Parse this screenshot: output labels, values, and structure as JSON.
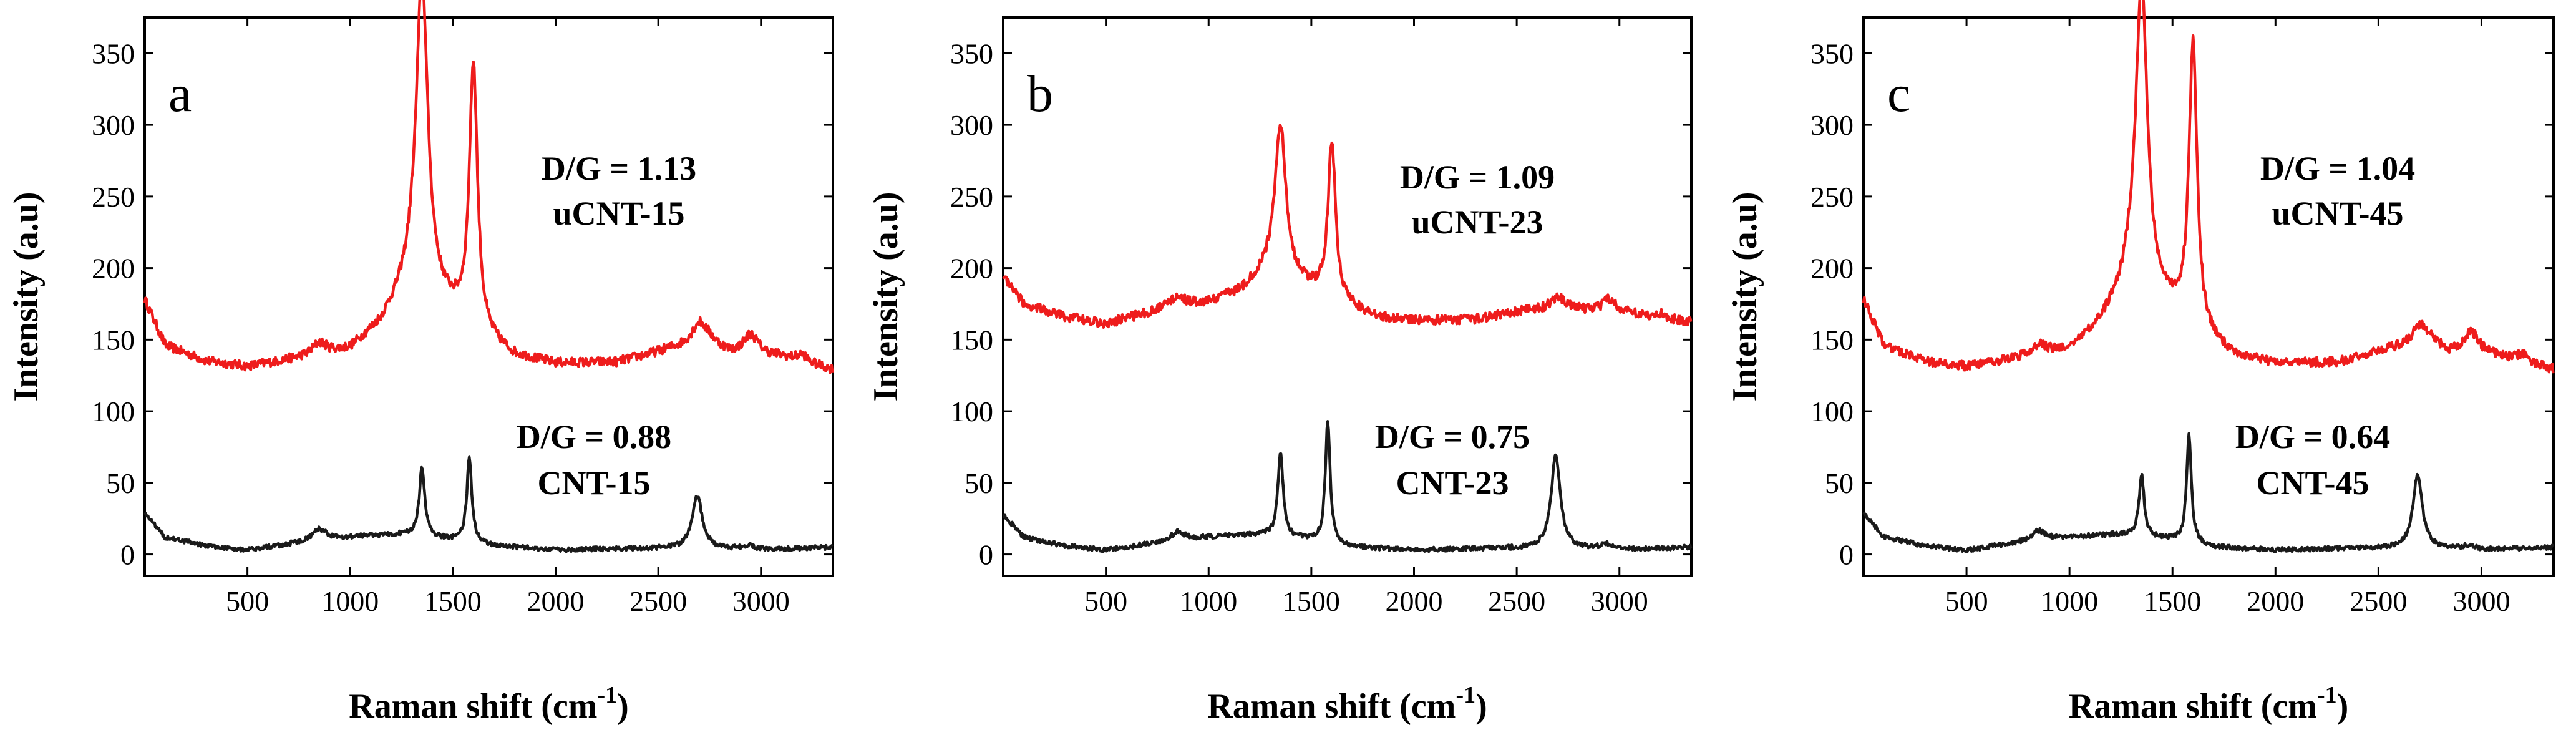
{
  "chart_data": [
    {
      "type": "line",
      "panel_label": "a",
      "xlabel": "Raman shift (cm",
      "xlabel_sup": "-1",
      "xlabel_end": ")",
      "ylabel": "Intensity (a.u)",
      "xlim": [
        0,
        3350
      ],
      "ylim": [
        -15,
        375
      ],
      "xticks": [
        500,
        1000,
        1500,
        2000,
        2500,
        3000
      ],
      "yticks": [
        0,
        50,
        100,
        150,
        200,
        250,
        300,
        350
      ],
      "annotations": {
        "upper": [
          "D/G = 1.13",
          "uCNT-15"
        ],
        "lower": [
          "D/G = 0.88",
          "CNT-15"
        ]
      },
      "series": [
        {
          "name": "uCNT-15",
          "color": "#ee1c1c",
          "baseline": [
            [
              0,
              178
            ],
            [
              100,
              146
            ],
            [
              300,
              135
            ],
            [
              500,
              131
            ],
            [
              800,
              138
            ],
            [
              1000,
              143
            ],
            [
              1150,
              160
            ],
            [
              1300,
              190
            ],
            [
              1400,
              178
            ],
            [
              1500,
              168
            ],
            [
              1650,
              150
            ],
            [
              1800,
              138
            ],
            [
              2000,
              133
            ],
            [
              2300,
              134
            ],
            [
              2550,
              143
            ],
            [
              2750,
              148
            ],
            [
              2850,
              140
            ],
            [
              3100,
              138
            ],
            [
              3350,
              129
            ]
          ],
          "peaks": [
            [
              1350,
              220,
              34
            ],
            [
              1600,
              185,
              24
            ],
            [
              850,
              8,
              40
            ],
            [
              2700,
              15,
              45
            ],
            [
              2950,
              14,
              45
            ],
            [
              3200,
              5,
              30
            ]
          ]
        },
        {
          "name": "CNT-15",
          "color": "#1a1a1a",
          "baseline": [
            [
              0,
              29
            ],
            [
              100,
              12
            ],
            [
              300,
              6
            ],
            [
              500,
              3
            ],
            [
              800,
              9
            ],
            [
              1000,
              12
            ],
            [
              1250,
              14
            ],
            [
              1500,
              10
            ],
            [
              1700,
              6
            ],
            [
              2000,
              3
            ],
            [
              2300,
              4
            ],
            [
              2600,
              4
            ],
            [
              3000,
              3
            ],
            [
              3350,
              5
            ]
          ],
          "peaks": [
            [
              1350,
              48,
              16
            ],
            [
              1580,
              58,
              15
            ],
            [
              850,
              8,
              40
            ],
            [
              2690,
              37,
              30
            ],
            [
              2940,
              3,
              40
            ]
          ]
        }
      ]
    },
    {
      "type": "line",
      "panel_label": "b",
      "xlabel": "Raman shift (cm",
      "xlabel_sup": "-1",
      "xlabel_end": ")",
      "ylabel": "Intensity (a.u)",
      "xlim": [
        0,
        3350
      ],
      "ylim": [
        -15,
        375
      ],
      "xticks": [
        500,
        1000,
        1500,
        2000,
        2500,
        3000
      ],
      "yticks": [
        0,
        50,
        100,
        150,
        200,
        250,
        300,
        350
      ],
      "annotations": {
        "upper": [
          "D/G = 1.09",
          "uCNT-23"
        ],
        "lower": [
          "D/G = 0.75",
          "CNT-23"
        ]
      },
      "series": [
        {
          "name": "uCNT-23",
          "color": "#ee1c1c",
          "baseline": [
            [
              0,
              195
            ],
            [
              100,
              175
            ],
            [
              300,
              166
            ],
            [
              500,
              161
            ],
            [
              800,
              172
            ],
            [
              1000,
              176
            ],
            [
              1150,
              183
            ],
            [
              1300,
              198
            ],
            [
              1450,
              188
            ],
            [
              1650,
              175
            ],
            [
              1800,
              166
            ],
            [
              2000,
              163
            ],
            [
              2300,
              164
            ],
            [
              2550,
              170
            ],
            [
              2800,
              170
            ],
            [
              3050,
              168
            ],
            [
              3350,
              162
            ]
          ],
          "peaks": [
            [
              1350,
              105,
              32
            ],
            [
              1600,
              110,
              22
            ],
            [
              850,
              7,
              40
            ],
            [
              2700,
              10,
              45
            ],
            [
              2950,
              9,
              40
            ],
            [
              3200,
              3,
              30
            ]
          ]
        },
        {
          "name": "CNT-23",
          "color": "#1a1a1a",
          "baseline": [
            [
              0,
              28
            ],
            [
              100,
              12
            ],
            [
              300,
              6
            ],
            [
              500,
              3
            ],
            [
              800,
              9
            ],
            [
              1000,
              12
            ],
            [
              1250,
              14
            ],
            [
              1500,
              10
            ],
            [
              1700,
              5
            ],
            [
              2000,
              3
            ],
            [
              2300,
              4
            ],
            [
              2600,
              4
            ],
            [
              3000,
              3
            ],
            [
              3350,
              5
            ]
          ],
          "peaks": [
            [
              1350,
              60,
              15
            ],
            [
              1580,
              85,
              14
            ],
            [
              850,
              6,
              40
            ],
            [
              2690,
              66,
              27
            ],
            [
              2940,
              4,
              40
            ]
          ]
        }
      ]
    },
    {
      "type": "line",
      "panel_label": "c",
      "xlabel": "Raman shift (cm",
      "xlabel_sup": "-1",
      "xlabel_end": ")",
      "ylabel": "Intensity (a.u)",
      "xlim": [
        0,
        3350
      ],
      "ylim": [
        -15,
        375
      ],
      "xticks": [
        500,
        1000,
        1500,
        2000,
        2500,
        3000
      ],
      "yticks": [
        0,
        50,
        100,
        150,
        200,
        250,
        300,
        350
      ],
      "annotations": {
        "upper": [
          "D/G = 1.04",
          "uCNT-45"
        ],
        "lower": [
          "D/G = 0.64",
          "CNT-45"
        ]
      },
      "series": [
        {
          "name": "uCNT-45",
          "color": "#ee1c1c",
          "baseline": [
            [
              0,
              178
            ],
            [
              100,
              146
            ],
            [
              300,
              135
            ],
            [
              500,
              131
            ],
            [
              800,
              138
            ],
            [
              1000,
              143
            ],
            [
              1150,
              160
            ],
            [
              1300,
              190
            ],
            [
              1400,
              178
            ],
            [
              1500,
              168
            ],
            [
              1650,
              150
            ],
            [
              1800,
              138
            ],
            [
              2000,
              133
            ],
            [
              2300,
              134
            ],
            [
              2550,
              143
            ],
            [
              2750,
              148
            ],
            [
              2850,
              140
            ],
            [
              3100,
              138
            ],
            [
              3350,
              129
            ]
          ],
          "peaks": [
            [
              1350,
              215,
              34
            ],
            [
              1600,
              200,
              24
            ],
            [
              850,
              7,
              40
            ],
            [
              2700,
              13,
              45
            ],
            [
              2950,
              16,
              45
            ],
            [
              3200,
              5,
              30
            ]
          ]
        },
        {
          "name": "CNT-45",
          "color": "#1a1a1a",
          "baseline": [
            [
              0,
              29
            ],
            [
              100,
              12
            ],
            [
              300,
              6
            ],
            [
              500,
              3
            ],
            [
              800,
              9
            ],
            [
              1000,
              12
            ],
            [
              1250,
              14
            ],
            [
              1500,
              10
            ],
            [
              1700,
              5
            ],
            [
              2000,
              3
            ],
            [
              2300,
              4
            ],
            [
              2600,
              4
            ],
            [
              3000,
              3
            ],
            [
              3350,
              5
            ]
          ],
          "peaks": [
            [
              1350,
              43,
              15
            ],
            [
              1580,
              75,
              14
            ],
            [
              850,
              7,
              40
            ],
            [
              2690,
              52,
              28
            ],
            [
              2940,
              3,
              40
            ]
          ]
        }
      ]
    }
  ]
}
